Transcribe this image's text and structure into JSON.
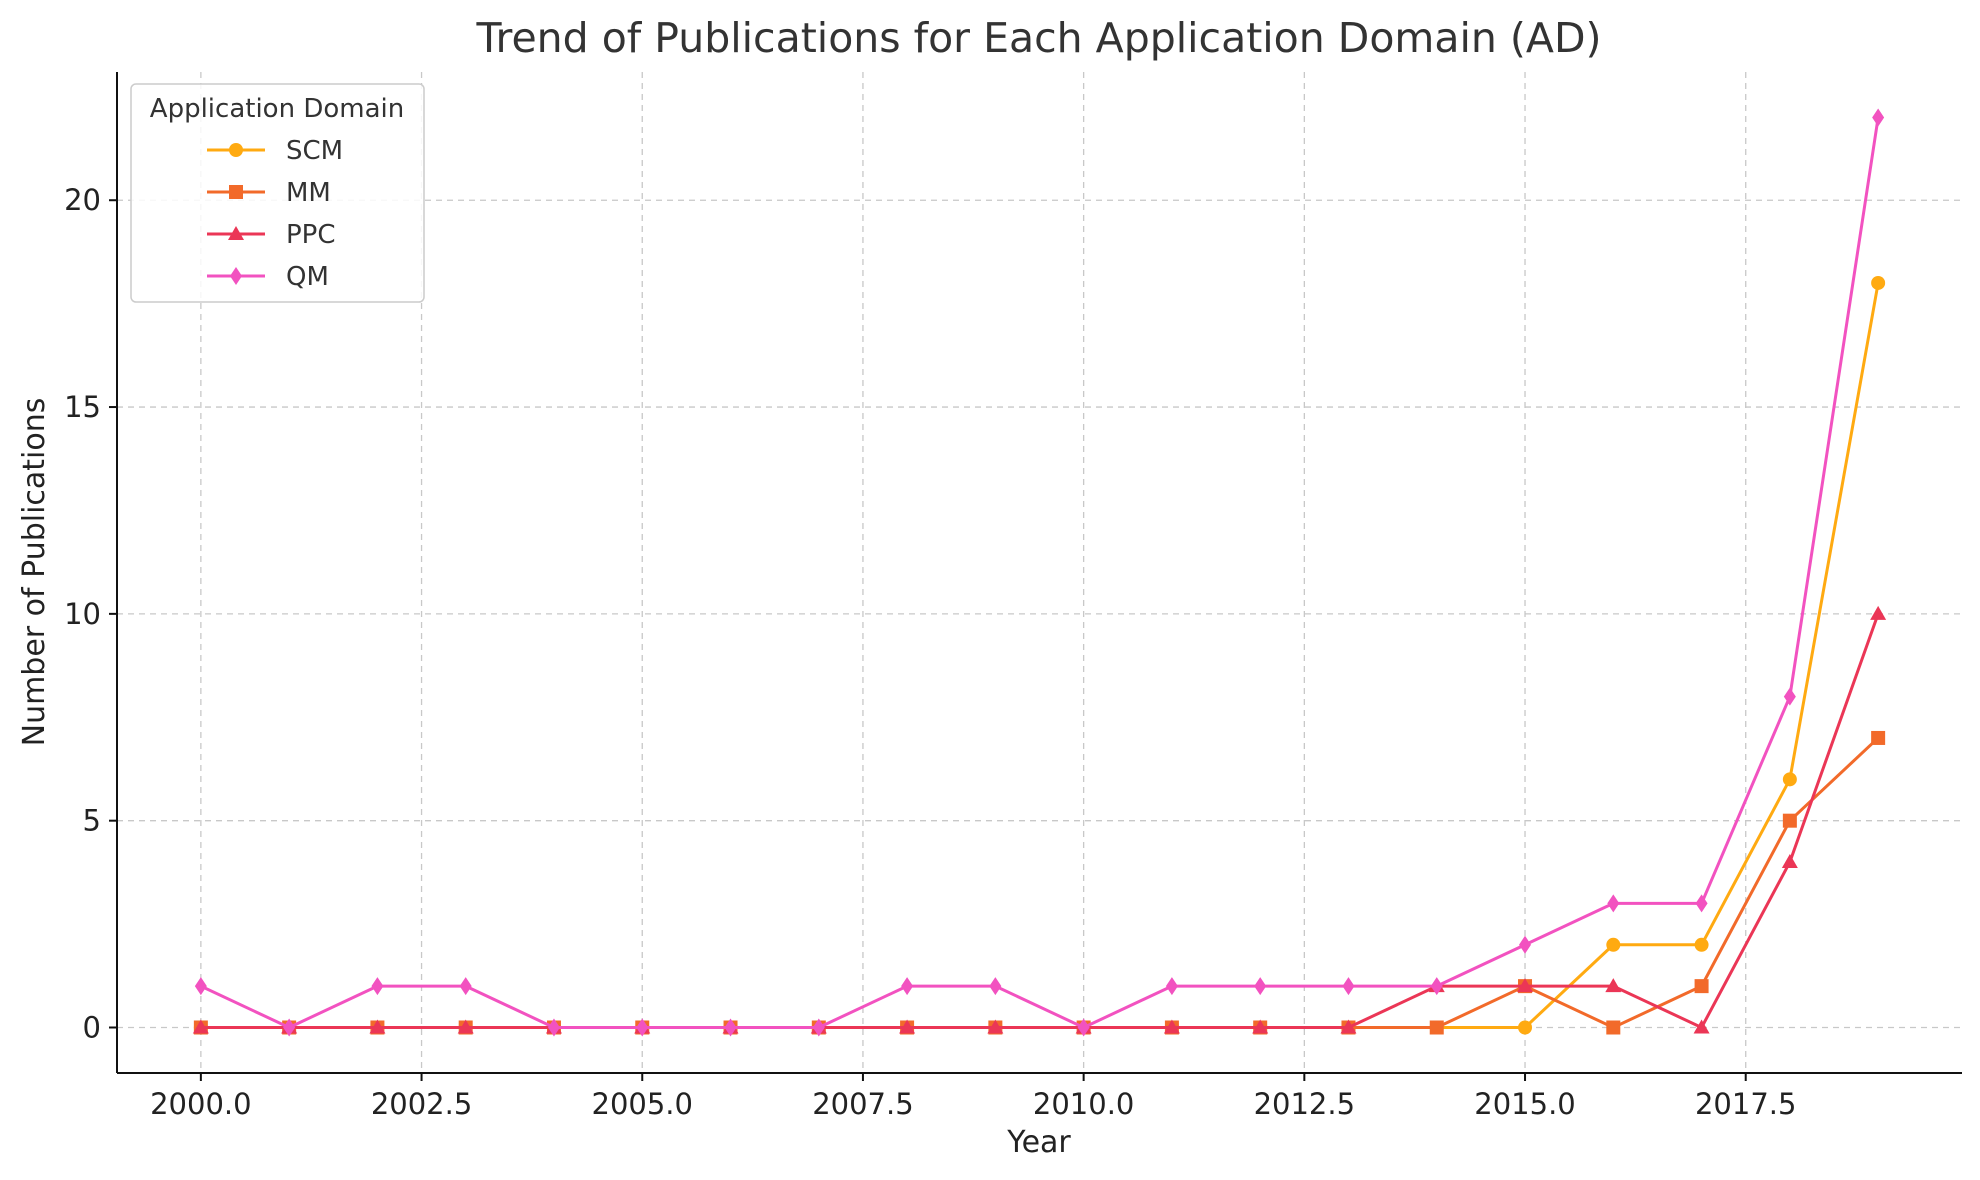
{
  "chart_data": {
    "type": "line",
    "title": "Trend of Publications for Each Application Domain (AD)",
    "xlabel": "Year",
    "ylabel": "Number of Publications",
    "x": [
      2000,
      2001,
      2002,
      2003,
      2004,
      2005,
      2006,
      2007,
      2008,
      2009,
      2010,
      2011,
      2012,
      2013,
      2014,
      2015,
      2016,
      2017,
      2018,
      2019
    ],
    "xlim": [
      1999.05,
      2019.95
    ],
    "ylim": [
      -1.1,
      23.1
    ],
    "xticks": [
      2000.0,
      2002.5,
      2005.0,
      2007.5,
      2010.0,
      2012.5,
      2015.0,
      2017.5
    ],
    "xtick_labels": [
      "2000.0",
      "2002.5",
      "2005.0",
      "2007.5",
      "2010.0",
      "2012.5",
      "2015.0",
      "2017.5"
    ],
    "yticks": [
      0,
      5,
      10,
      15,
      20
    ],
    "ytick_labels": [
      "0",
      "5",
      "10",
      "15",
      "20"
    ],
    "grid": true,
    "legend": {
      "title": "Application Domain",
      "placement": "upper-left"
    },
    "series": [
      {
        "name": "SCM",
        "color": "#ffaa11",
        "marker": "circle",
        "values": [
          0,
          0,
          0,
          0,
          0,
          0,
          0,
          0,
          0,
          0,
          0,
          0,
          0,
          0,
          0,
          0,
          2,
          2,
          6,
          18
        ]
      },
      {
        "name": "MM",
        "color": "#f26a2a",
        "marker": "square",
        "values": [
          0,
          0,
          0,
          0,
          0,
          0,
          0,
          0,
          0,
          0,
          0,
          0,
          0,
          0,
          0,
          1,
          0,
          1,
          5,
          7
        ]
      },
      {
        "name": "PPC",
        "color": "#eb3656",
        "marker": "triangle",
        "values": [
          0,
          0,
          0,
          0,
          0,
          0,
          0,
          0,
          0,
          0,
          0,
          0,
          0,
          0,
          1,
          1,
          1,
          0,
          4,
          10
        ]
      },
      {
        "name": "QM",
        "color": "#f252c0",
        "marker": "diamond",
        "values": [
          1,
          0,
          1,
          1,
          0,
          0,
          0,
          0,
          1,
          1,
          0,
          1,
          1,
          1,
          1,
          2,
          3,
          3,
          8,
          22
        ]
      }
    ]
  }
}
